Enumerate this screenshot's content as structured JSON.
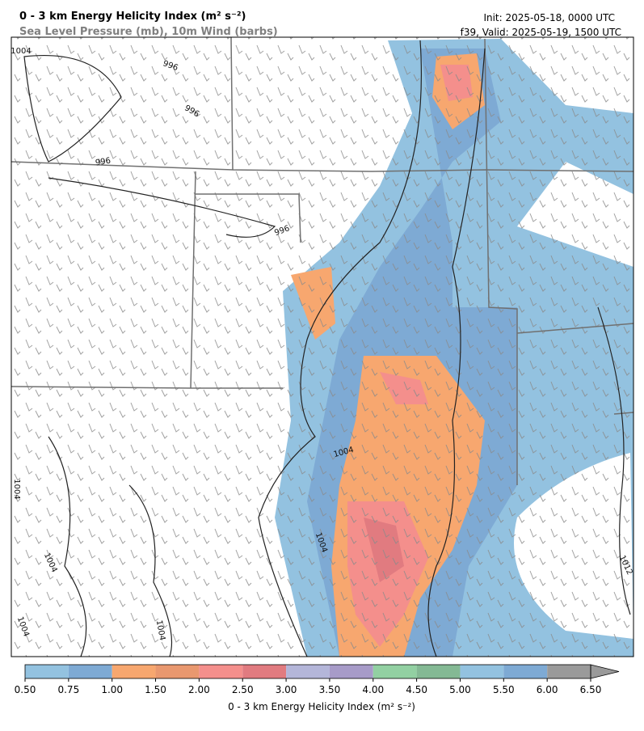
{
  "header": {
    "title": "0 - 3 km Energy Helicity Index (m² s⁻²)",
    "subtitle": "Sea Level Pressure (mb), 10m Wind (barbs)",
    "init": "Init: 2025-05-18, 0000 UTC",
    "valid": "f39, Valid: 2025-05-19, 1500 UTC"
  },
  "contour_labels": [
    1004,
    996,
    996,
    996,
    996,
    1004,
    1004,
    1004,
    1004,
    1004,
    1012,
    1004
  ],
  "colorbar": {
    "label": "0 - 3 km Energy Helicity Index (m² s⁻²)",
    "ticks": [
      {
        "value": 0.5,
        "label": "0.50"
      },
      {
        "value": 0.75,
        "label": "0.75"
      },
      {
        "value": 1.0,
        "label": "1.00"
      },
      {
        "value": 1.5,
        "label": "1.50"
      },
      {
        "value": 2.0,
        "label": "2.00"
      },
      {
        "value": 2.5,
        "label": "2.50"
      },
      {
        "value": 3.0,
        "label": "3.00"
      },
      {
        "value": 3.5,
        "label": "3.50"
      },
      {
        "value": 4.0,
        "label": "4.00"
      },
      {
        "value": 4.5,
        "label": "4.50"
      },
      {
        "value": 5.0,
        "label": "5.00"
      },
      {
        "value": 5.5,
        "label": "5.50"
      },
      {
        "value": 6.0,
        "label": "6.00"
      },
      {
        "value": 6.5,
        "label": "6.50"
      }
    ],
    "colors": [
      "#93c2e0",
      "#7eaad4",
      "#f7a76f",
      "#e9986f",
      "#f48f8c",
      "#e17b80",
      "#b4b6d9",
      "#a79bc8",
      "#92d0a2",
      "#84b994",
      "#93c2e0",
      "#7eaad4",
      "#9a9a9a"
    ],
    "extend_color": "#9a9a9a"
  }
}
